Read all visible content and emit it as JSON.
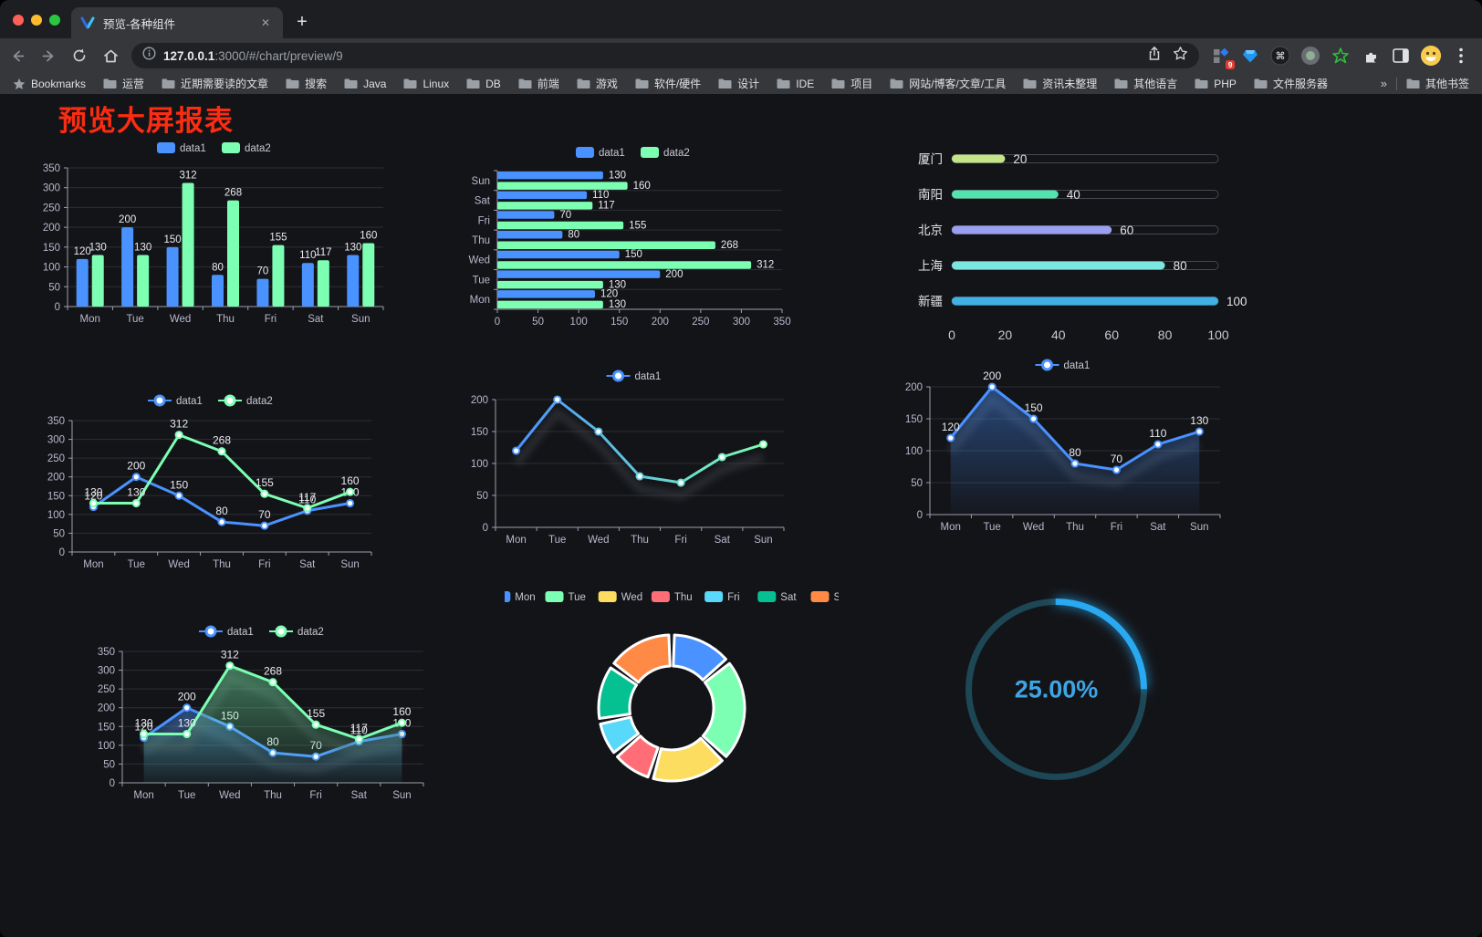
{
  "browser": {
    "tab": {
      "title": "预览-各种组件",
      "close_glyph": "✕",
      "new_tab_glyph": "+"
    },
    "url": {
      "host": "127.0.0.1",
      "rest": ":3000/#/chart/preview/9"
    },
    "extensions_badge": "9",
    "bookmarks_bar": {
      "star_label": "Bookmarks",
      "folders": [
        "运营",
        "近期需要读的文章",
        "搜索",
        "Java",
        "Linux",
        "DB",
        "前端",
        "游戏",
        "软件/硬件",
        "设计",
        "IDE",
        "项目",
        "网站/博客/文章/工具",
        "资讯未整理",
        "其他语言",
        "PHP",
        "文件服务器"
      ],
      "overflow_glyph": "»",
      "other_bookmarks": "其他书签"
    }
  },
  "page": {
    "title": "预览大屏报表",
    "title_color": "#fb2c11"
  },
  "chart_data": [
    {
      "id": "bar-vertical",
      "type": "bar",
      "categories": [
        "Mon",
        "Tue",
        "Wed",
        "Thu",
        "Fri",
        "Sat",
        "Sun"
      ],
      "series": [
        {
          "name": "data1",
          "color": "#4992ff",
          "values": [
            120,
            200,
            150,
            80,
            70,
            110,
            130
          ]
        },
        {
          "name": "data2",
          "color": "#7cffb2",
          "values": [
            130,
            130,
            312,
            268,
            155,
            117,
            160
          ]
        }
      ],
      "ylim": [
        0,
        350
      ],
      "ytick": 50,
      "legend_position": "top",
      "grid": true
    },
    {
      "id": "bar-horizontal",
      "type": "bar-horizontal",
      "categories": [
        "Mon",
        "Tue",
        "Wed",
        "Thu",
        "Fri",
        "Sat",
        "Sun"
      ],
      "series": [
        {
          "name": "data1",
          "color": "#4992ff",
          "values": [
            120,
            200,
            150,
            80,
            70,
            110,
            130
          ]
        },
        {
          "name": "data2",
          "color": "#7cffb2",
          "values": [
            130,
            130,
            312,
            268,
            155,
            117,
            160
          ]
        }
      ],
      "xlim": [
        0,
        350
      ],
      "xtick": 50,
      "legend_position": "top",
      "grid": true
    },
    {
      "id": "capsule",
      "type": "capsule",
      "rows": [
        {
          "label": "厦门",
          "value": 20,
          "color": "#c3e587"
        },
        {
          "label": "南阳",
          "value": 40,
          "color": "#54e2ae"
        },
        {
          "label": "北京",
          "value": 60,
          "color": "#9b9ff2"
        },
        {
          "label": "上海",
          "value": 80,
          "color": "#7ce7e0"
        },
        {
          "label": "新疆",
          "value": 100,
          "color": "#3fb1e3"
        }
      ],
      "xlim": [
        0,
        100
      ],
      "xticks": [
        0,
        20,
        40,
        60,
        80,
        100
      ]
    },
    {
      "id": "line-two",
      "type": "line",
      "categories": [
        "Mon",
        "Tue",
        "Wed",
        "Thu",
        "Fri",
        "Sat",
        "Sun"
      ],
      "series": [
        {
          "name": "data1",
          "color": "#4992ff",
          "values": [
            120,
            200,
            150,
            80,
            70,
            110,
            130
          ],
          "labels": true
        },
        {
          "name": "data2",
          "color": "#7cffb2",
          "values": [
            130,
            130,
            312,
            268,
            155,
            117,
            160
          ],
          "labels": true
        }
      ],
      "ylim": [
        0,
        350
      ],
      "ytick": 50,
      "legend_position": "top",
      "grid": true
    },
    {
      "id": "line-gradient",
      "type": "line",
      "categories": [
        "Mon",
        "Tue",
        "Wed",
        "Thu",
        "Fri",
        "Sat",
        "Sun"
      ],
      "series": [
        {
          "name": "data1",
          "color": "#4992ff",
          "gradient_end": "#7cffb2",
          "values": [
            120,
            200,
            150,
            80,
            70,
            110,
            130
          ],
          "labels": false
        }
      ],
      "ylim": [
        0,
        200
      ],
      "ytick": 50,
      "shadow": true,
      "legend_position": "top",
      "grid": true
    },
    {
      "id": "line-area",
      "type": "line",
      "categories": [
        "Mon",
        "Tue",
        "Wed",
        "Thu",
        "Fri",
        "Sat",
        "Sun"
      ],
      "series": [
        {
          "name": "data1",
          "color": "#4992ff",
          "area": true,
          "values": [
            120,
            200,
            150,
            80,
            70,
            110,
            130
          ],
          "labels": true
        }
      ],
      "ylim": [
        0,
        200
      ],
      "ytick": 50,
      "shadow": true,
      "legend_position": "top",
      "grid": true
    },
    {
      "id": "line-area-two",
      "type": "line",
      "categories": [
        "Mon",
        "Tue",
        "Wed",
        "Thu",
        "Fri",
        "Sat",
        "Sun"
      ],
      "series": [
        {
          "name": "data1",
          "color": "#4992ff",
          "area": true,
          "values": [
            120,
            200,
            150,
            80,
            70,
            110,
            130
          ],
          "labels": true
        },
        {
          "name": "data2",
          "color": "#7cffb2",
          "area": true,
          "values": [
            130,
            130,
            312,
            268,
            155,
            117,
            160
          ],
          "labels": true
        }
      ],
      "ylim": [
        0,
        350
      ],
      "ytick": 50,
      "shadow": true,
      "legend_position": "top",
      "grid": true
    },
    {
      "id": "pie",
      "type": "pie",
      "labels": [
        "Mon",
        "Tue",
        "Wed",
        "Thu",
        "Fri",
        "Sat",
        "Sun"
      ],
      "values": [
        120,
        200,
        150,
        80,
        70,
        110,
        130
      ],
      "colors": [
        "#4992ff",
        "#7cffb2",
        "#fddd60",
        "#ff6e76",
        "#58d9f9",
        "#05c091",
        "#ff8a45"
      ],
      "donut": true,
      "legend_position": "top"
    },
    {
      "id": "gauge",
      "type": "gauge",
      "value": 25,
      "label": "25.00%",
      "color": "#28a9f1",
      "track_color": "#1d4754"
    }
  ]
}
